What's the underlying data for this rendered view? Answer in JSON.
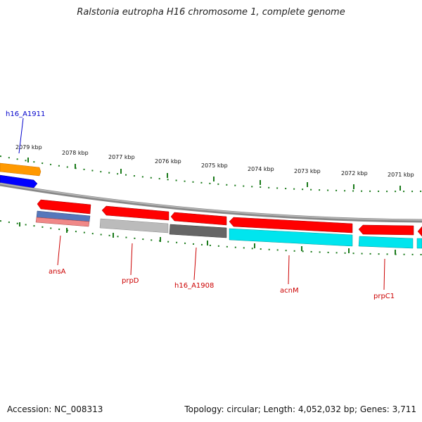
{
  "title": "Ralstonia eutropha H16 chromosome 1, complete genome",
  "accession_label": "Accession: NC_008313",
  "summary_label": "Topology: circular; Length: 4,052,032 bp; Genes: 3,711",
  "colors": {
    "backbone": "#888888",
    "tick": "#1a7a1a",
    "label_red": "#cc0000",
    "label_blue": "#0000cc"
  },
  "kbp_ticks": [
    "2079 kbp",
    "2078 kbp",
    "2077 kbp",
    "2076 kbp",
    "2075 kbp",
    "2074 kbp",
    "2073 kbp",
    "2072 kbp",
    "2071 kbp"
  ],
  "gene_labels": {
    "h16_A1911": "h16_A1911",
    "ansA": "ansA",
    "prpD": "prpD",
    "h16_A1908": "h16_A1908",
    "acnM": "acnM",
    "prpC1": "prpC1"
  }
}
